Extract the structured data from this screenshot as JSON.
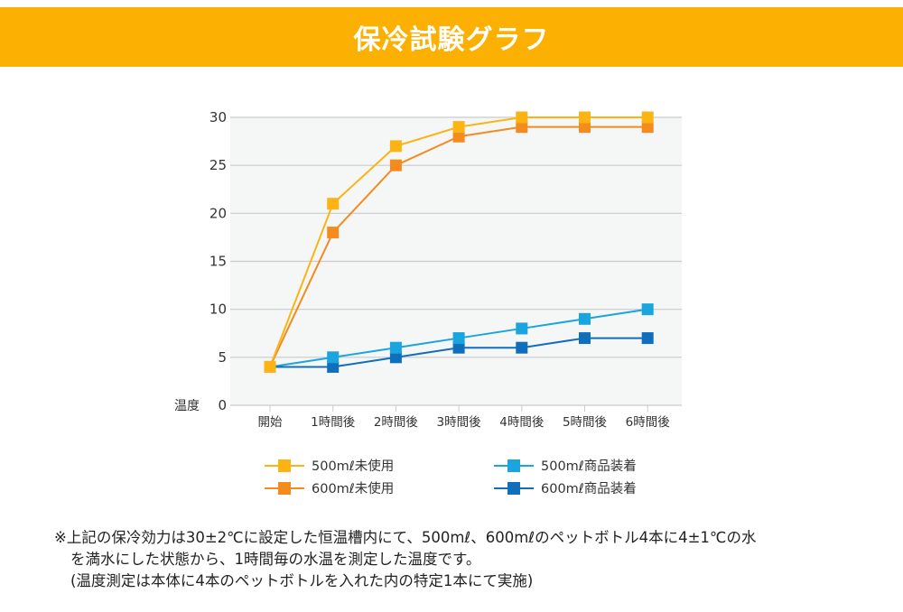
{
  "header": {
    "title": "保冷試験グラフ"
  },
  "chart_data": {
    "type": "line",
    "title": "保冷試験グラフ",
    "xlabel": "",
    "ylabel": "温度",
    "ylim": [
      0,
      30
    ],
    "yticks": [
      0,
      5,
      10,
      15,
      20,
      25,
      30
    ],
    "grid": true,
    "categories": [
      "開始",
      "1時間後",
      "2時間後",
      "3時間後",
      "4時間後",
      "5時間後",
      "6時間後"
    ],
    "series": [
      {
        "name": "500mℓ未使用",
        "color": "#fbb414",
        "values": [
          4,
          21,
          27,
          29,
          30,
          30,
          30
        ]
      },
      {
        "name": "600mℓ未使用",
        "color": "#f58a1f",
        "values": [
          4,
          18,
          25,
          28,
          29,
          29,
          29
        ]
      },
      {
        "name": "500mℓ商品装着",
        "color": "#1aa5de",
        "values": [
          4,
          5,
          6,
          7,
          8,
          9,
          10
        ]
      },
      {
        "name": "600mℓ商品装着",
        "color": "#0f6fbd",
        "values": [
          4,
          4,
          5,
          6,
          6,
          7,
          7
        ]
      }
    ],
    "legend_position": "bottom"
  },
  "notes": {
    "line1": "※上記の保冷効力は30±2℃に設定した恒温槽内にて、500mℓ、600mℓのペットボトル4本に4±1℃の水",
    "line2": "を満水にした状態から、1時間毎の水温を測定した温度です。",
    "line3": "(温度測定は本体に4本のペットボトルを入れた内の特定1本にて実施)"
  }
}
